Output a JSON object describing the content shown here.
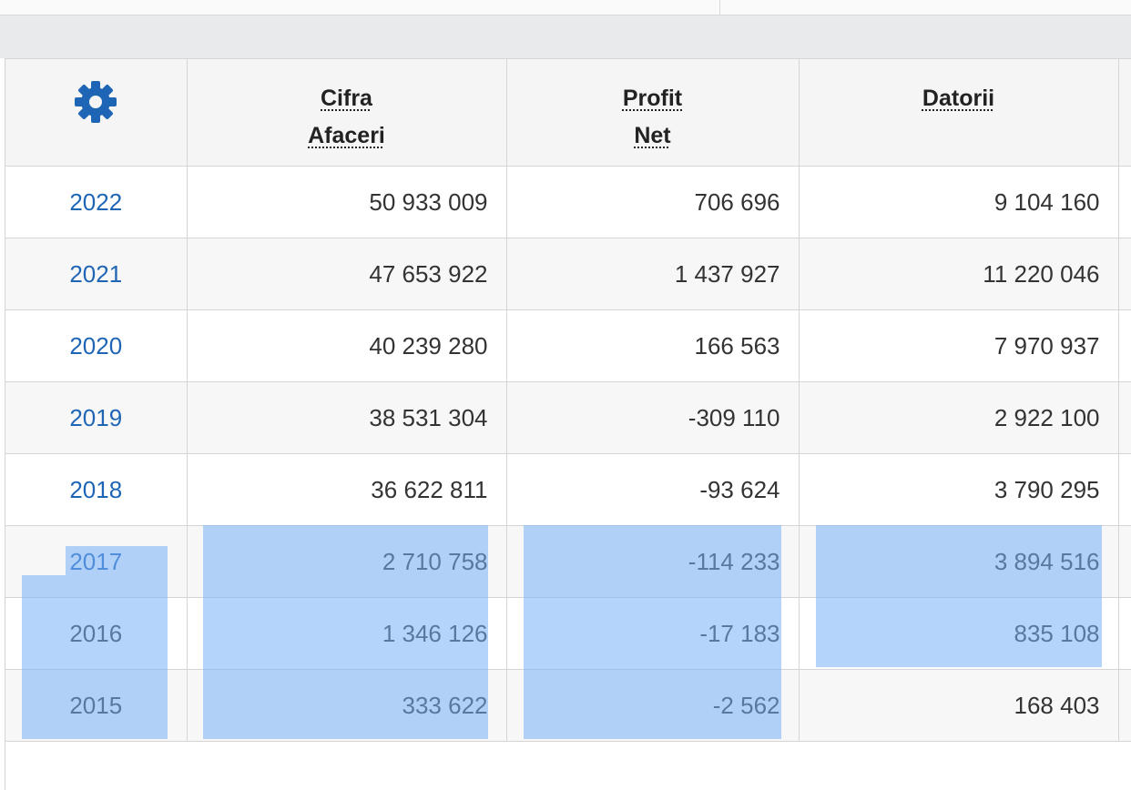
{
  "table": {
    "settings_icon": "gear-icon",
    "columns": [
      [
        "Cifra",
        "Afaceri"
      ],
      [
        "Profit",
        "Net"
      ],
      [
        "Datorii"
      ]
    ],
    "rows": [
      {
        "year": "2022",
        "linked": true,
        "cifra_afaceri": "50 933 009",
        "profit_net": "706 696",
        "datorii": "9 104 160"
      },
      {
        "year": "2021",
        "linked": true,
        "cifra_afaceri": "47 653 922",
        "profit_net": "1 437 927",
        "datorii": "11 220 046"
      },
      {
        "year": "2020",
        "linked": true,
        "cifra_afaceri": "40 239 280",
        "profit_net": "166 563",
        "datorii": "7 970 937"
      },
      {
        "year": "2019",
        "linked": true,
        "cifra_afaceri": "38 531 304",
        "profit_net": "-309 110",
        "datorii": "2 922 100"
      },
      {
        "year": "2018",
        "linked": true,
        "cifra_afaceri": "36 622 811",
        "profit_net": "-93 624",
        "datorii": "3 790 295"
      },
      {
        "year": "2017",
        "linked": true,
        "cifra_afaceri": "2 710 758",
        "profit_net": "-114 233",
        "datorii": "3 894 516"
      },
      {
        "year": "2016",
        "linked": false,
        "cifra_afaceri": "1 346 126",
        "profit_net": "-17 183",
        "datorii": "835 108"
      },
      {
        "year": "2015",
        "linked": false,
        "cifra_afaceri": "333 622",
        "profit_net": "-2 562",
        "datorii": "168 403"
      }
    ]
  },
  "colors": {
    "link": "#1f65b5",
    "gear": "#1f65b5",
    "selection": "#78b0fa"
  }
}
